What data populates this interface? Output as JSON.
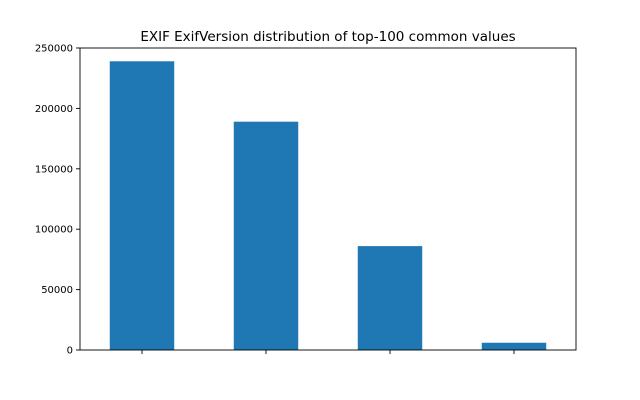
{
  "chart_data": {
    "type": "bar",
    "title": "EXIF ExifVersion distribution of top-100 common values",
    "xlabel": "",
    "ylabel": "",
    "categories": [
      "",
      "",
      "",
      ""
    ],
    "values": [
      239000,
      189000,
      86000,
      6000
    ],
    "ylim": [
      0,
      250000
    ],
    "yticks": [
      0,
      50000,
      100000,
      150000,
      200000,
      250000
    ],
    "ytick_labels": [
      "0",
      "50000",
      "100000",
      "150000",
      "200000",
      "250000"
    ],
    "grid": false,
    "bar_color": "#1f77b4"
  }
}
